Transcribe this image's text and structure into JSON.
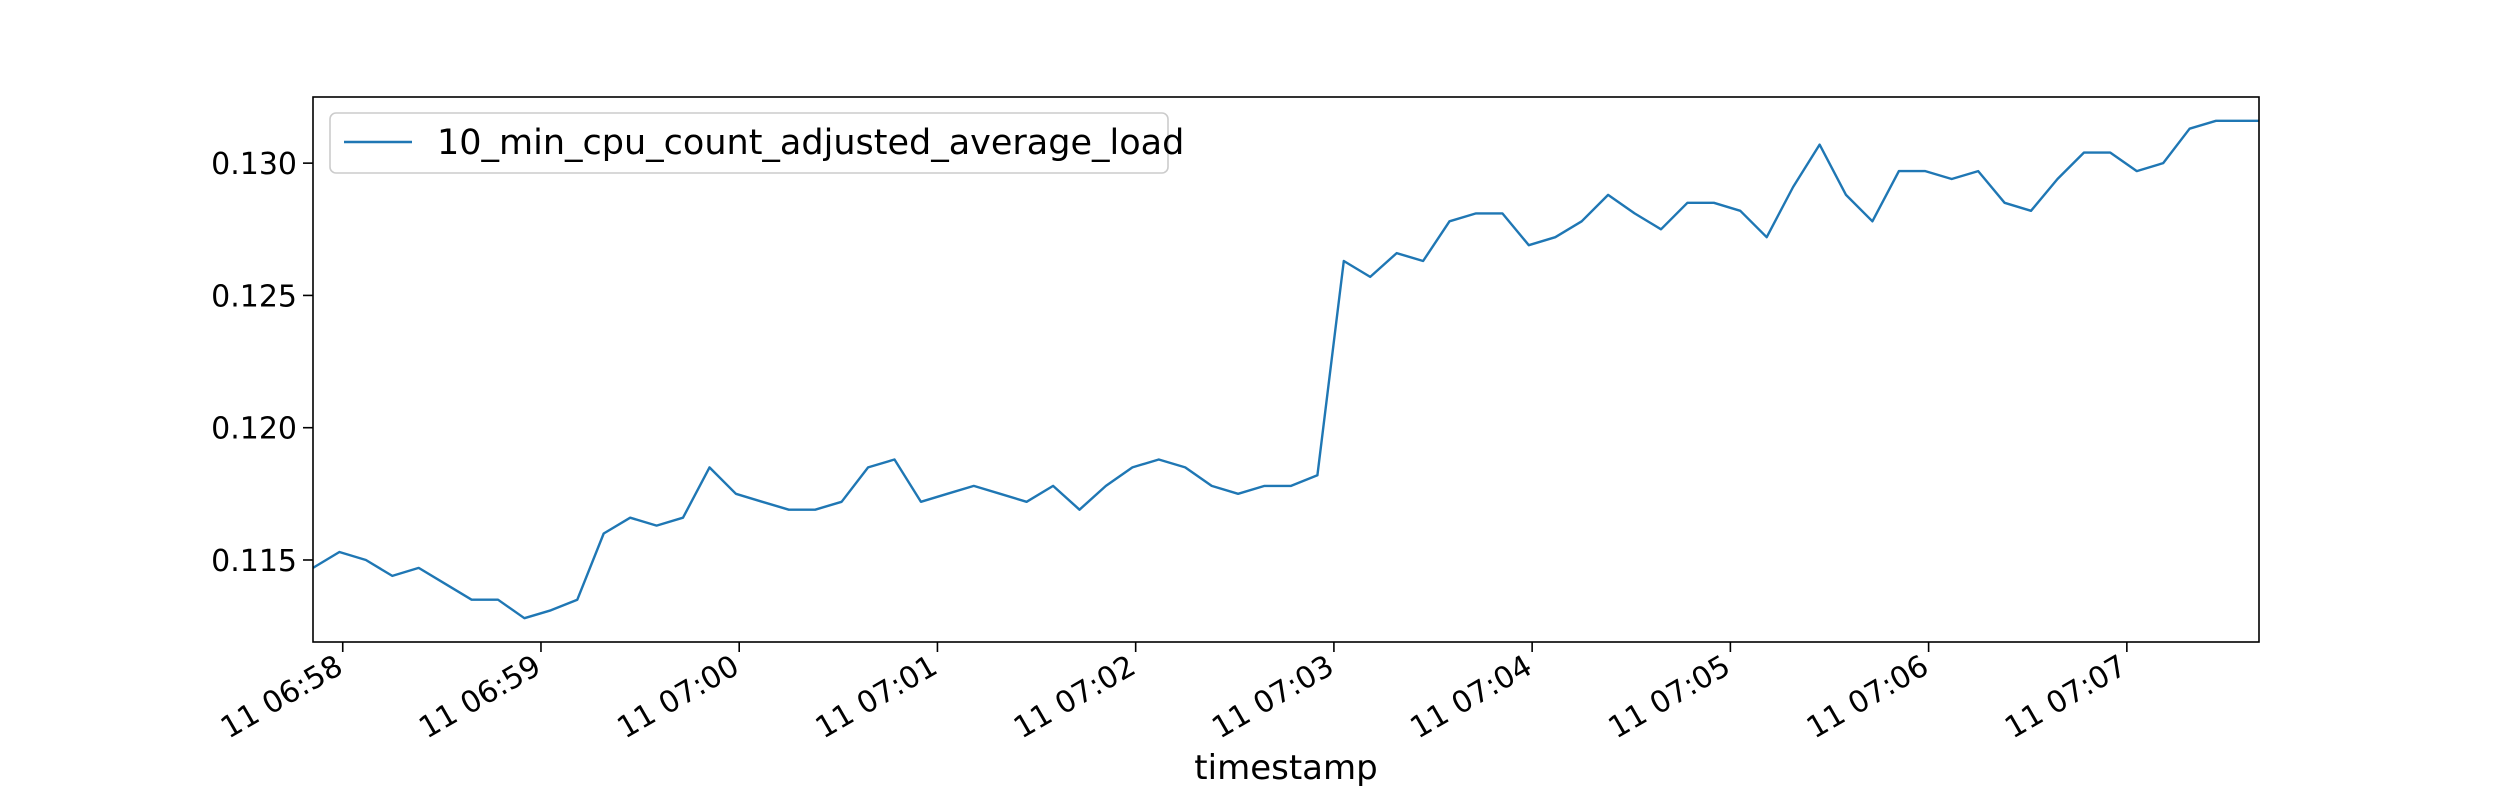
{
  "chart_data": {
    "type": "line",
    "title": "",
    "xlabel": "timestamp",
    "ylabel": "",
    "legend": {
      "placement": "top-left",
      "entries": [
        "10_min_cpu_count_adjusted_average_load"
      ]
    },
    "grid": false,
    "ylim": [
      0.1119,
      0.1325
    ],
    "yticks": [
      0.115,
      0.12,
      0.125,
      0.13
    ],
    "ytick_labels": [
      "0.115",
      "0.120",
      "0.125",
      "0.130"
    ],
    "xlim": [
      "11 06:57:51",
      "11 07:07:40"
    ],
    "xticks": [
      "11 06:58",
      "11 06:59",
      "11 07:00",
      "11 07:01",
      "11 07:02",
      "11 07:03",
      "11 07:04",
      "11 07:05",
      "11 07:06",
      "11 07:07"
    ],
    "xtick_labels": [
      "11 06:58",
      "11 06:59",
      "11 07:00",
      "11 07:01",
      "11 07:02",
      "11 07:03",
      "11 07:04",
      "11 07:05",
      "11 07:06",
      "11 07:07"
    ],
    "x": [
      "11 06:57:51",
      "11 06:57:59",
      "11 06:58:07",
      "11 06:58:15",
      "11 06:58:23",
      "11 06:58:31",
      "11 06:58:39",
      "11 06:58:47",
      "11 06:58:55",
      "11 06:59:03",
      "11 06:59:11",
      "11 06:59:19",
      "11 06:59:27",
      "11 06:59:35",
      "11 06:59:43",
      "11 06:59:51",
      "11 06:59:59",
      "11 07:00:07",
      "11 07:00:15",
      "11 07:00:23",
      "11 07:00:31",
      "11 07:00:39",
      "11 07:00:47",
      "11 07:00:55",
      "11 07:01:03",
      "11 07:01:11",
      "11 07:01:19",
      "11 07:01:27",
      "11 07:01:35",
      "11 07:01:43",
      "11 07:01:51",
      "11 07:01:59",
      "11 07:02:07",
      "11 07:02:15",
      "11 07:02:23",
      "11 07:02:31",
      "11 07:02:39",
      "11 07:02:47",
      "11 07:02:55",
      "11 07:03:03",
      "11 07:03:11",
      "11 07:03:19",
      "11 07:03:27",
      "11 07:03:35",
      "11 07:03:43",
      "11 07:03:51",
      "11 07:03:59",
      "11 07:04:07",
      "11 07:04:15",
      "11 07:04:23",
      "11 07:04:31",
      "11 07:04:39",
      "11 07:04:47",
      "11 07:04:55",
      "11 07:05:03",
      "11 07:05:11",
      "11 07:05:19",
      "11 07:05:27",
      "11 07:05:35",
      "11 07:05:43",
      "11 07:05:51",
      "11 07:05:59",
      "11 07:06:07",
      "11 07:06:15",
      "11 07:06:23",
      "11 07:06:31",
      "11 07:06:39",
      "11 07:06:47",
      "11 07:06:55",
      "11 07:07:03",
      "11 07:07:11",
      "11 07:07:19",
      "11 07:07:27",
      "11 07:07:35",
      "11 07:07:40"
    ],
    "series": [
      {
        "name": "10_min_cpu_count_adjusted_average_load",
        "color": "#1f77b4",
        "values": [
          0.1147,
          0.1153,
          0.115,
          0.1144,
          0.1147,
          0.1141,
          0.1135,
          0.1135,
          0.1128,
          0.1131,
          0.1135,
          0.116,
          0.1166,
          0.1163,
          0.1166,
          0.1185,
          0.1175,
          0.1172,
          0.1169,
          0.1169,
          0.1172,
          0.1185,
          0.1188,
          0.1172,
          0.1175,
          0.1178,
          0.1175,
          0.1172,
          0.1178,
          0.1169,
          0.1178,
          0.1185,
          0.1188,
          0.1185,
          0.1178,
          0.1175,
          0.1178,
          0.1178,
          0.1182,
          0.1263,
          0.1257,
          0.1266,
          0.1263,
          0.1278,
          0.1281,
          0.1281,
          0.1269,
          0.1272,
          0.1278,
          0.1288,
          0.1281,
          0.1275,
          0.1285,
          0.1285,
          0.1282,
          0.1272,
          0.1291,
          0.1307,
          0.1288,
          0.1278,
          0.1297,
          0.1297,
          0.1294,
          0.1297,
          0.1285,
          0.1282,
          0.1294,
          0.1304,
          0.1304,
          0.1297,
          0.13,
          0.1313,
          0.1316,
          0.1316,
          0.1316
        ]
      }
    ]
  }
}
